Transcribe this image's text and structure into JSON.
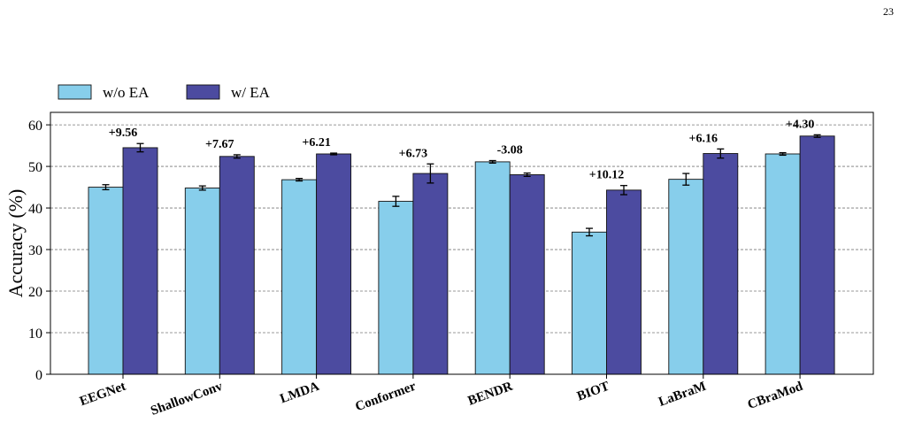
{
  "page_number": "23",
  "chart_data": {
    "type": "bar",
    "ylabel": "Accuracy (%)",
    "xlabel": "",
    "ylim": [
      0,
      63
    ],
    "yticks": [
      0,
      10,
      20,
      30,
      40,
      50,
      60
    ],
    "grid": "y-dashed",
    "legend_position": "top-left-outside",
    "categories": [
      "EEGNet",
      "ShallowConv",
      "LMDA",
      "Conformer",
      "BENDR",
      "BIOT",
      "LaBraM",
      "CBraMod"
    ],
    "series": [
      {
        "name": "w/o EA",
        "color": "#87CEEB",
        "values": [
          45.0,
          44.8,
          46.8,
          41.6,
          51.1,
          34.2,
          46.9,
          53.0
        ],
        "errors": [
          0.6,
          0.5,
          0.3,
          1.2,
          0.3,
          0.9,
          1.4,
          0.3
        ]
      },
      {
        "name": "w/ EA",
        "color": "#4C4BA0",
        "values": [
          54.5,
          52.4,
          53.0,
          48.3,
          48.0,
          44.3,
          53.1,
          57.3
        ],
        "errors": [
          1.0,
          0.4,
          0.2,
          2.3,
          0.4,
          1.1,
          1.1,
          0.3
        ]
      }
    ],
    "annotations": [
      "+9.56",
      "+7.67",
      "+6.21",
      "+6.73",
      "-3.08",
      "+10.12",
      "+6.16",
      "+4.30"
    ]
  }
}
